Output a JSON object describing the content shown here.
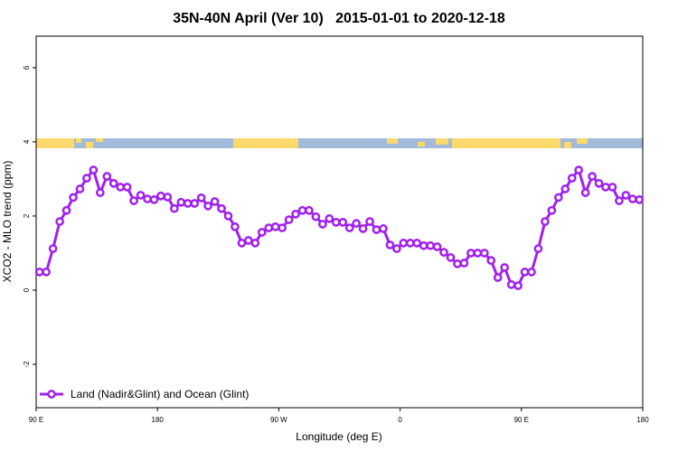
{
  "chart_data": {
    "type": "line",
    "title": "35N-40N April (Ver 10)   2015-01-01 to 2020-12-18",
    "x_label": "Longitude (deg E)",
    "y_label": "XCO2 - MLO trend (ppm)",
    "x": [
      92.5,
      97.5,
      102.5,
      107.5,
      112.5,
      117.5,
      122.5,
      127.5,
      132.5,
      137.5,
      142.5,
      147.5,
      152.5,
      157.5,
      162.5,
      167.5,
      172.5,
      177.5,
      182.5,
      187.5,
      192.5,
      197.5,
      202.5,
      207.5,
      212.5,
      217.5,
      222.5,
      227.5,
      232.5,
      237.5,
      242.5,
      247.5,
      252.5,
      257.5,
      262.5,
      267.5,
      272.5,
      277.5,
      282.5,
      287.5,
      292.5,
      297.5,
      302.5,
      307.5,
      312.5,
      317.5,
      322.5,
      327.5,
      332.5,
      337.5,
      342.5,
      347.5,
      352.5,
      357.5,
      362.5,
      367.5,
      372.5,
      377.5,
      382.5,
      387.5,
      392.5,
      397.5,
      402.5,
      407.5,
      412.5,
      417.5,
      422.5,
      427.5,
      432.5,
      437.5,
      442.5,
      447.5,
      452.5,
      457.5,
      462.5,
      467.5,
      472.5,
      477.5,
      482.5,
      487.5,
      492.5,
      497.5,
      502.5,
      507.5,
      512.5,
      517.5,
      522.5,
      527.5,
      532.5,
      537.5
    ],
    "series": [
      {
        "name": "Land (Nadir&Glint) and Ocean (Glint)",
        "color": "#a020f0",
        "values": [
          0.49,
          0.49,
          1.12,
          1.85,
          2.15,
          2.5,
          2.73,
          3.02,
          3.24,
          2.63,
          3.07,
          2.88,
          2.78,
          2.78,
          2.41,
          2.56,
          2.46,
          2.44,
          2.54,
          2.51,
          2.2,
          2.37,
          2.34,
          2.34,
          2.49,
          2.27,
          2.39,
          2.2,
          2.0,
          1.71,
          1.27,
          1.34,
          1.27,
          1.56,
          1.68,
          1.71,
          1.68,
          1.9,
          2.05,
          2.15,
          2.15,
          1.98,
          1.78,
          1.93,
          1.83,
          1.83,
          1.68,
          1.8,
          1.66,
          1.85,
          1.63,
          1.66,
          1.22,
          1.12,
          1.27,
          1.27,
          1.27,
          1.2,
          1.2,
          1.17,
          1.02,
          0.88,
          0.71,
          0.73,
          1.0,
          1.0,
          1.0,
          0.8,
          0.34,
          0.61,
          0.15,
          0.12,
          0.49,
          0.49,
          1.12,
          1.85,
          2.15,
          2.5,
          2.73,
          3.02,
          3.24,
          2.63,
          3.07,
          2.88,
          2.78,
          2.78,
          2.41,
          2.56,
          2.46,
          2.44
        ]
      }
    ],
    "xlim": [
      90,
      540
    ],
    "xticks": [
      {
        "value": 90,
        "label": "90 E"
      },
      180,
      {
        "value": 270,
        "label": "90 W"
      },
      {
        "value": 360,
        "label": "0"
      },
      {
        "value": 450,
        "label": "90 E"
      },
      {
        "value": 540,
        "label": "180"
      }
    ],
    "ylim": [
      -3.17,
      6.85
    ],
    "yticks": [
      -2,
      0,
      2,
      4,
      6
    ],
    "grid": false,
    "legend": "bottom-left"
  }
}
